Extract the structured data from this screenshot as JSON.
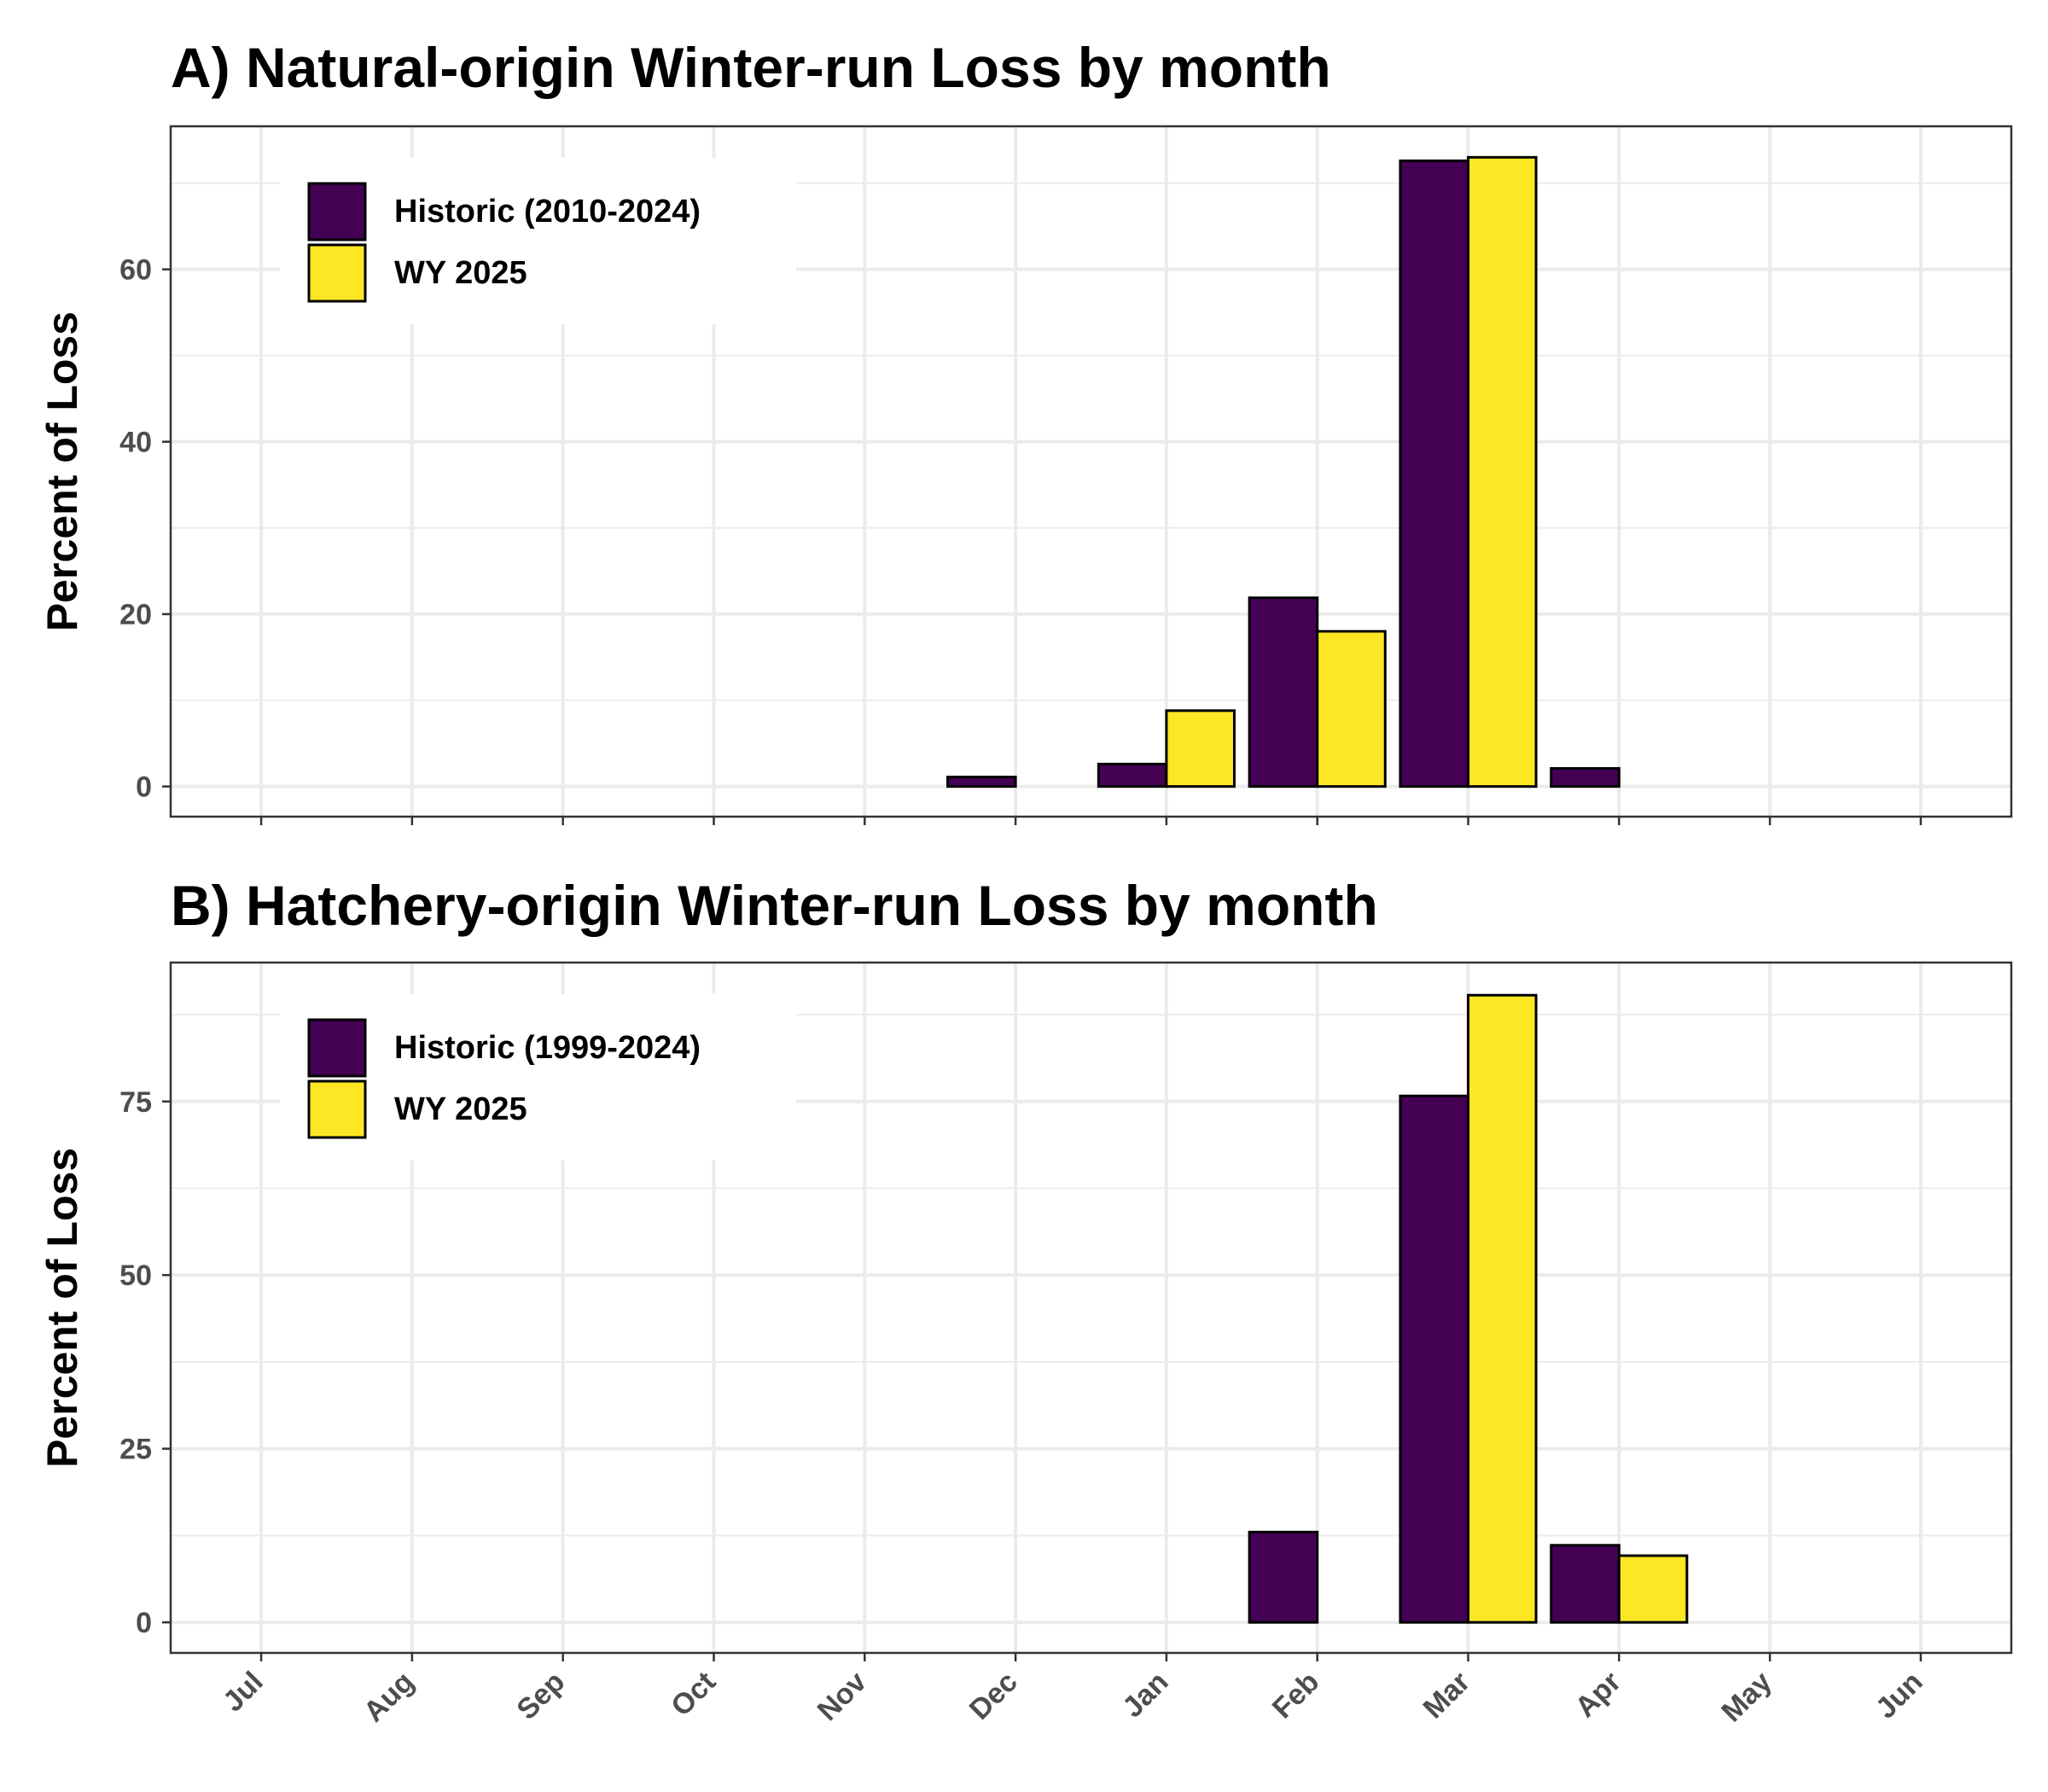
{
  "chart_data": [
    {
      "type": "bar",
      "title": "A) Natural-origin Winter-run Loss by month",
      "xlabel": "",
      "ylabel": "Percent of Loss",
      "categories": [
        "Jul",
        "Aug",
        "Sep",
        "Oct",
        "Nov",
        "Dec",
        "Jan",
        "Feb",
        "Mar",
        "Apr",
        "May",
        "Jun"
      ],
      "series": [
        {
          "name": "Historic (2010-2024)",
          "color": "#440154",
          "values": [
            null,
            null,
            null,
            null,
            null,
            1.1,
            2.6,
            21.9,
            72.6,
            2.1,
            null,
            null
          ]
        },
        {
          "name": "WY 2025",
          "color": "#FDE725",
          "values": [
            null,
            null,
            null,
            null,
            null,
            null,
            8.8,
            18.0,
            73.0,
            null,
            null,
            null
          ]
        }
      ],
      "yticks": [
        0,
        20,
        40,
        60
      ],
      "ylim": [
        -3.5,
        76.6
      ],
      "grid": true,
      "legend": "top-left"
    },
    {
      "type": "bar",
      "title": "B) Hatchery-origin Winter-run Loss by month",
      "xlabel": "",
      "ylabel": "Percent of Loss",
      "categories": [
        "Jul",
        "Aug",
        "Sep",
        "Oct",
        "Nov",
        "Dec",
        "Jan",
        "Feb",
        "Mar",
        "Apr",
        "May",
        "Jun"
      ],
      "series": [
        {
          "name": "Historic (1999-2024)",
          "color": "#440154",
          "values": [
            null,
            null,
            null,
            null,
            null,
            null,
            null,
            13.0,
            75.8,
            11.1,
            null,
            null
          ]
        },
        {
          "name": "WY 2025",
          "color": "#FDE725",
          "values": [
            null,
            null,
            null,
            null,
            null,
            null,
            null,
            null,
            90.3,
            9.6,
            null,
            null
          ]
        }
      ],
      "yticks": [
        0,
        25,
        50,
        75
      ],
      "ylim": [
        -4.4,
        95.0
      ],
      "grid": true,
      "legend": "top-left"
    }
  ]
}
